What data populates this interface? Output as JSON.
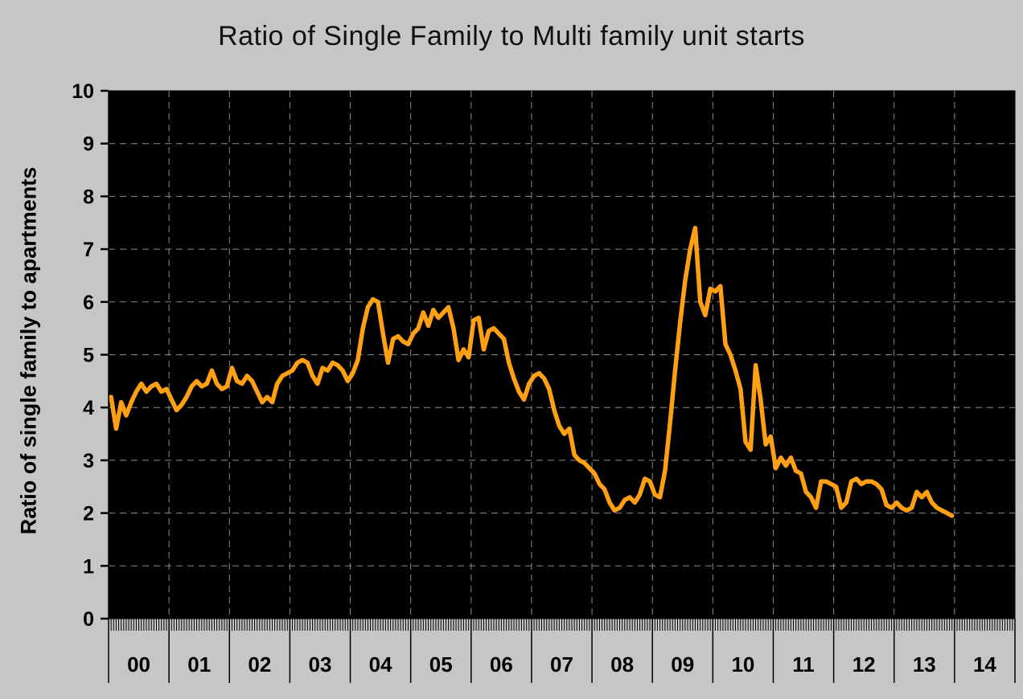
{
  "chart_data": {
    "type": "line",
    "title": "Ratio of Single Family to Multi family unit starts",
    "ylabel": "Ratio of single family to apartments",
    "xlabel": "",
    "ylim": [
      0,
      10
    ],
    "y_ticks": [
      0,
      1,
      2,
      3,
      4,
      5,
      6,
      7,
      8,
      9,
      10
    ],
    "x_year_labels": [
      "00",
      "01",
      "02",
      "03",
      "04",
      "05",
      "06",
      "07",
      "08",
      "09",
      "10",
      "11",
      "12",
      "13",
      "14"
    ],
    "grid": "dashed",
    "legend": "none",
    "page_background": "#c6c6c6",
    "plot_background": "#000000",
    "grid_color": "#8c8c8c",
    "line_color": "#FFA014",
    "series": [
      {
        "name": "Ratio of single family to apartments",
        "frequency": "monthly",
        "start": "2000-01",
        "end": "2013-12",
        "values": [
          4.2,
          3.6,
          4.1,
          3.85,
          4.1,
          4.3,
          4.45,
          4.3,
          4.4,
          4.45,
          4.3,
          4.35,
          4.15,
          3.95,
          4.05,
          4.2,
          4.4,
          4.5,
          4.4,
          4.45,
          4.7,
          4.45,
          4.35,
          4.4,
          4.75,
          4.5,
          4.45,
          4.6,
          4.5,
          4.3,
          4.1,
          4.2,
          4.1,
          4.45,
          4.6,
          4.65,
          4.7,
          4.85,
          4.9,
          4.85,
          4.6,
          4.45,
          4.75,
          4.7,
          4.85,
          4.8,
          4.7,
          4.5,
          4.65,
          4.9,
          5.5,
          5.9,
          6.05,
          6.0,
          5.4,
          4.85,
          5.3,
          5.35,
          5.25,
          5.2,
          5.4,
          5.5,
          5.8,
          5.55,
          5.85,
          5.7,
          5.8,
          5.9,
          5.5,
          4.9,
          5.1,
          4.95,
          5.65,
          5.7,
          5.1,
          5.45,
          5.5,
          5.4,
          5.3,
          4.85,
          4.55,
          4.3,
          4.15,
          4.45,
          4.6,
          4.65,
          4.55,
          4.35,
          3.95,
          3.65,
          3.5,
          3.6,
          3.1,
          3.0,
          2.95,
          2.85,
          2.75,
          2.55,
          2.45,
          2.2,
          2.05,
          2.1,
          2.25,
          2.3,
          2.2,
          2.35,
          2.65,
          2.6,
          2.35,
          2.3,
          2.8,
          3.7,
          4.7,
          5.6,
          6.4,
          7.0,
          7.4,
          6.0,
          5.75,
          6.25,
          6.2,
          6.3,
          5.2,
          5.0,
          4.7,
          4.35,
          3.35,
          3.2,
          4.8,
          4.15,
          3.3,
          3.45,
          2.85,
          3.05,
          2.9,
          3.05,
          2.8,
          2.75,
          2.4,
          2.3,
          2.1,
          2.6,
          2.6,
          2.55,
          2.5,
          2.1,
          2.2,
          2.6,
          2.65,
          2.55,
          2.6,
          2.6,
          2.55,
          2.45,
          2.15,
          2.1,
          2.2,
          2.1,
          2.05,
          2.1,
          2.4,
          2.3,
          2.4,
          2.2,
          2.1,
          2.05,
          2.0,
          1.95
        ]
      }
    ]
  }
}
